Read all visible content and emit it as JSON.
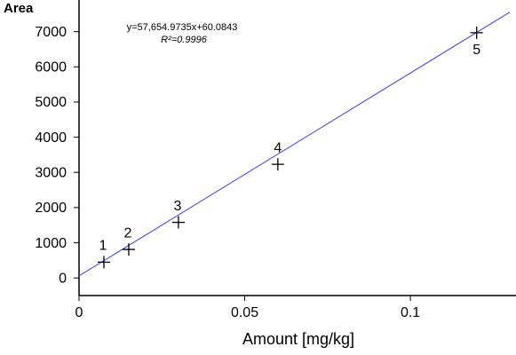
{
  "chart_data": {
    "type": "scatter",
    "y_label": "Area",
    "x_label": "Amount  [mg/kg]",
    "equation": "y=57,654.9735x+60.0843",
    "r_squared_label": "R²=0.9996",
    "x": [
      0.0075,
      0.015,
      0.03,
      0.06,
      0.12
    ],
    "values": [
      450,
      810,
      1580,
      3230,
      6970
    ],
    "point_labels": [
      "1",
      "2",
      "3",
      "4",
      "5"
    ],
    "color": "#000000",
    "fit": {
      "slope": 57654.9735,
      "intercept": 60.0843,
      "color": "#3b3bf0"
    },
    "xlim": [
      0,
      0.13
    ],
    "xticks": [
      0,
      0.05,
      {
        "value": 0.1,
        "label": "0.1"
      }
    ],
    "ylim": [
      -500,
      7900
    ],
    "yticks": [
      0,
      1000,
      2000,
      3000,
      4000,
      5000,
      6000,
      7000
    ],
    "grid": false
  }
}
